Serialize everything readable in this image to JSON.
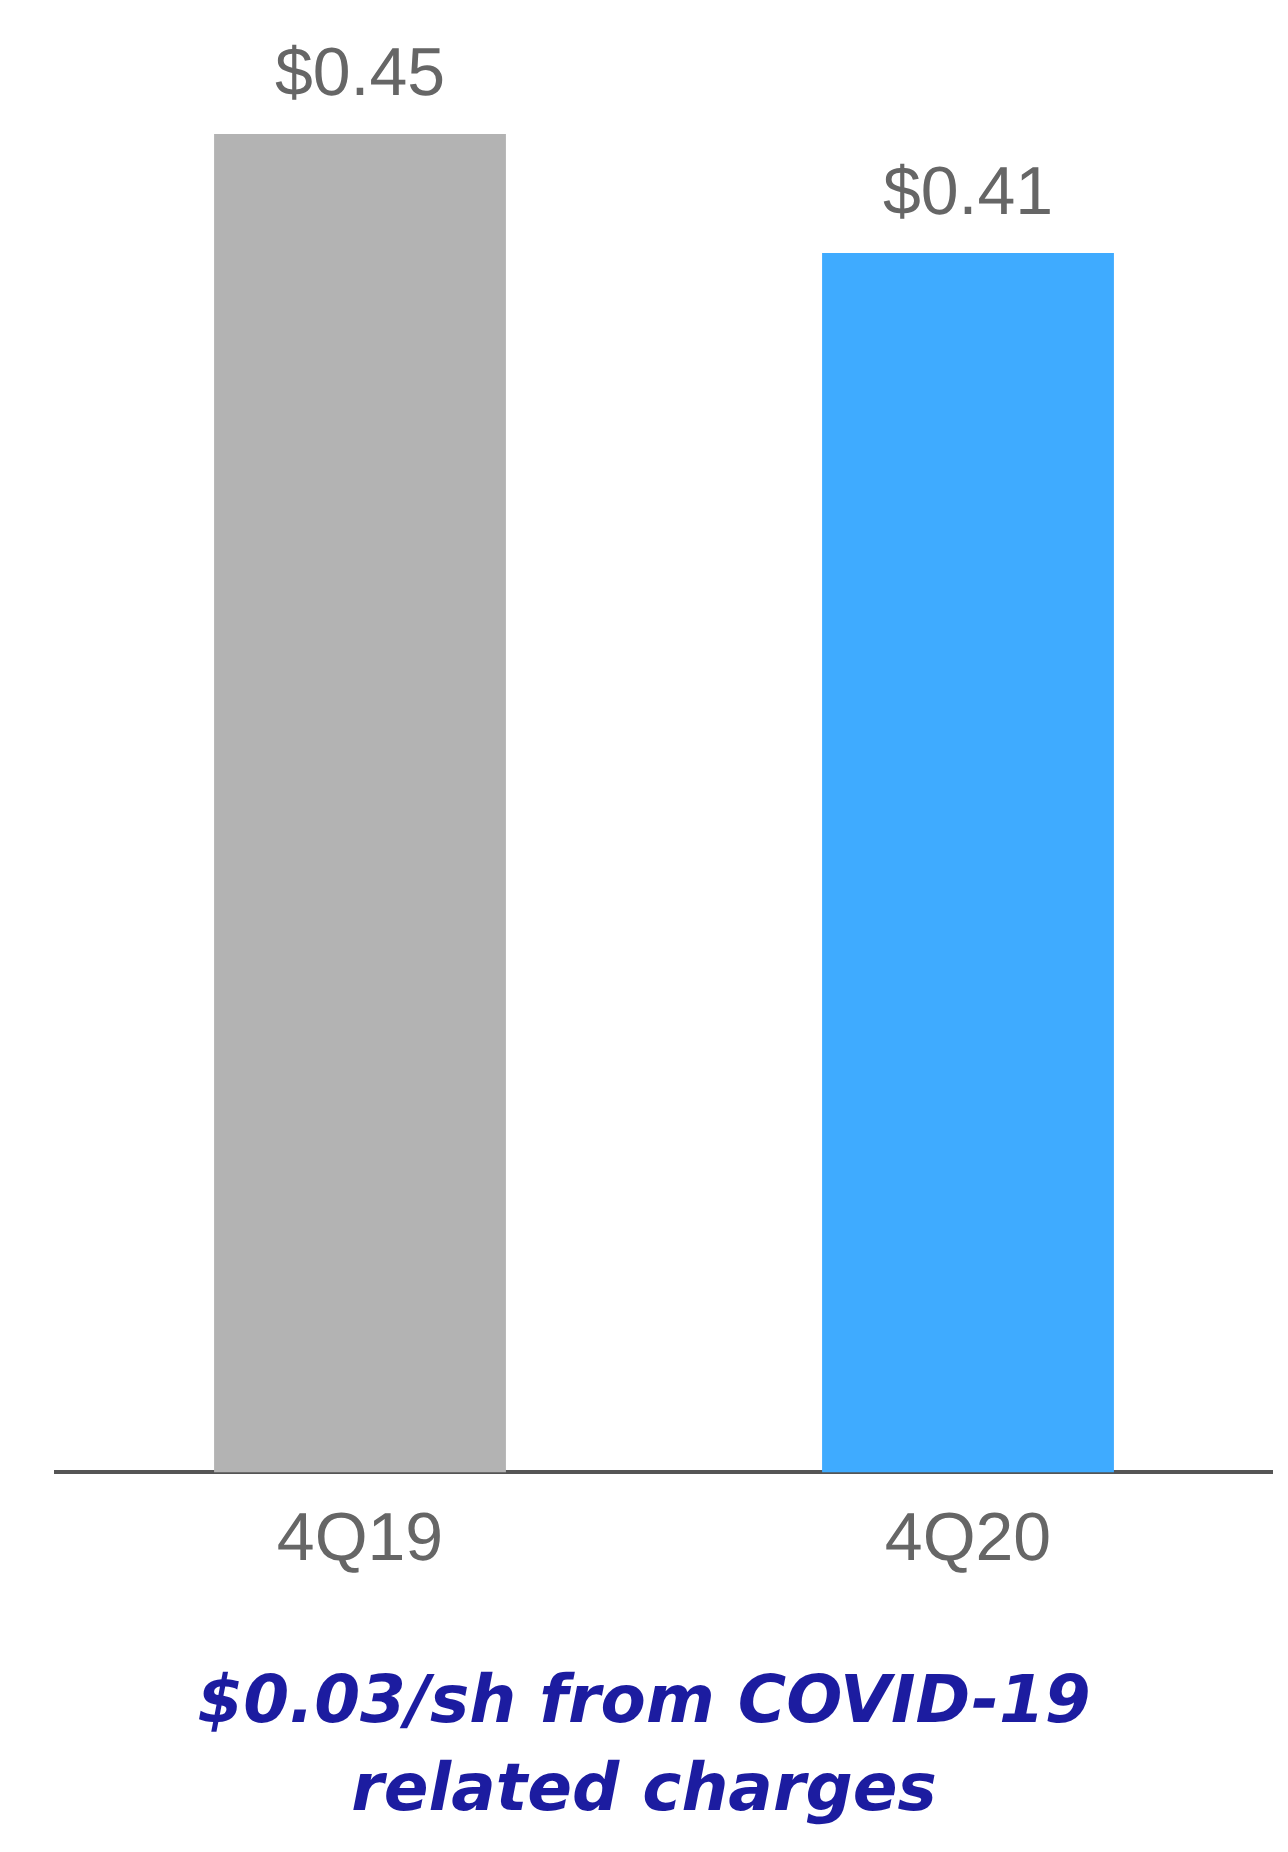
{
  "chart_data": {
    "type": "bar",
    "categories": [
      "4Q19",
      "4Q20"
    ],
    "values": [
      0.45,
      0.41
    ],
    "colors": [
      "#b3b3b3",
      "#3fabff"
    ],
    "value_labels": [
      "$0.45",
      "$0.41"
    ],
    "grid": false,
    "legend": false,
    "annotations": [
      "$0.03/sh from COVID-19 related charges"
    ]
  }
}
